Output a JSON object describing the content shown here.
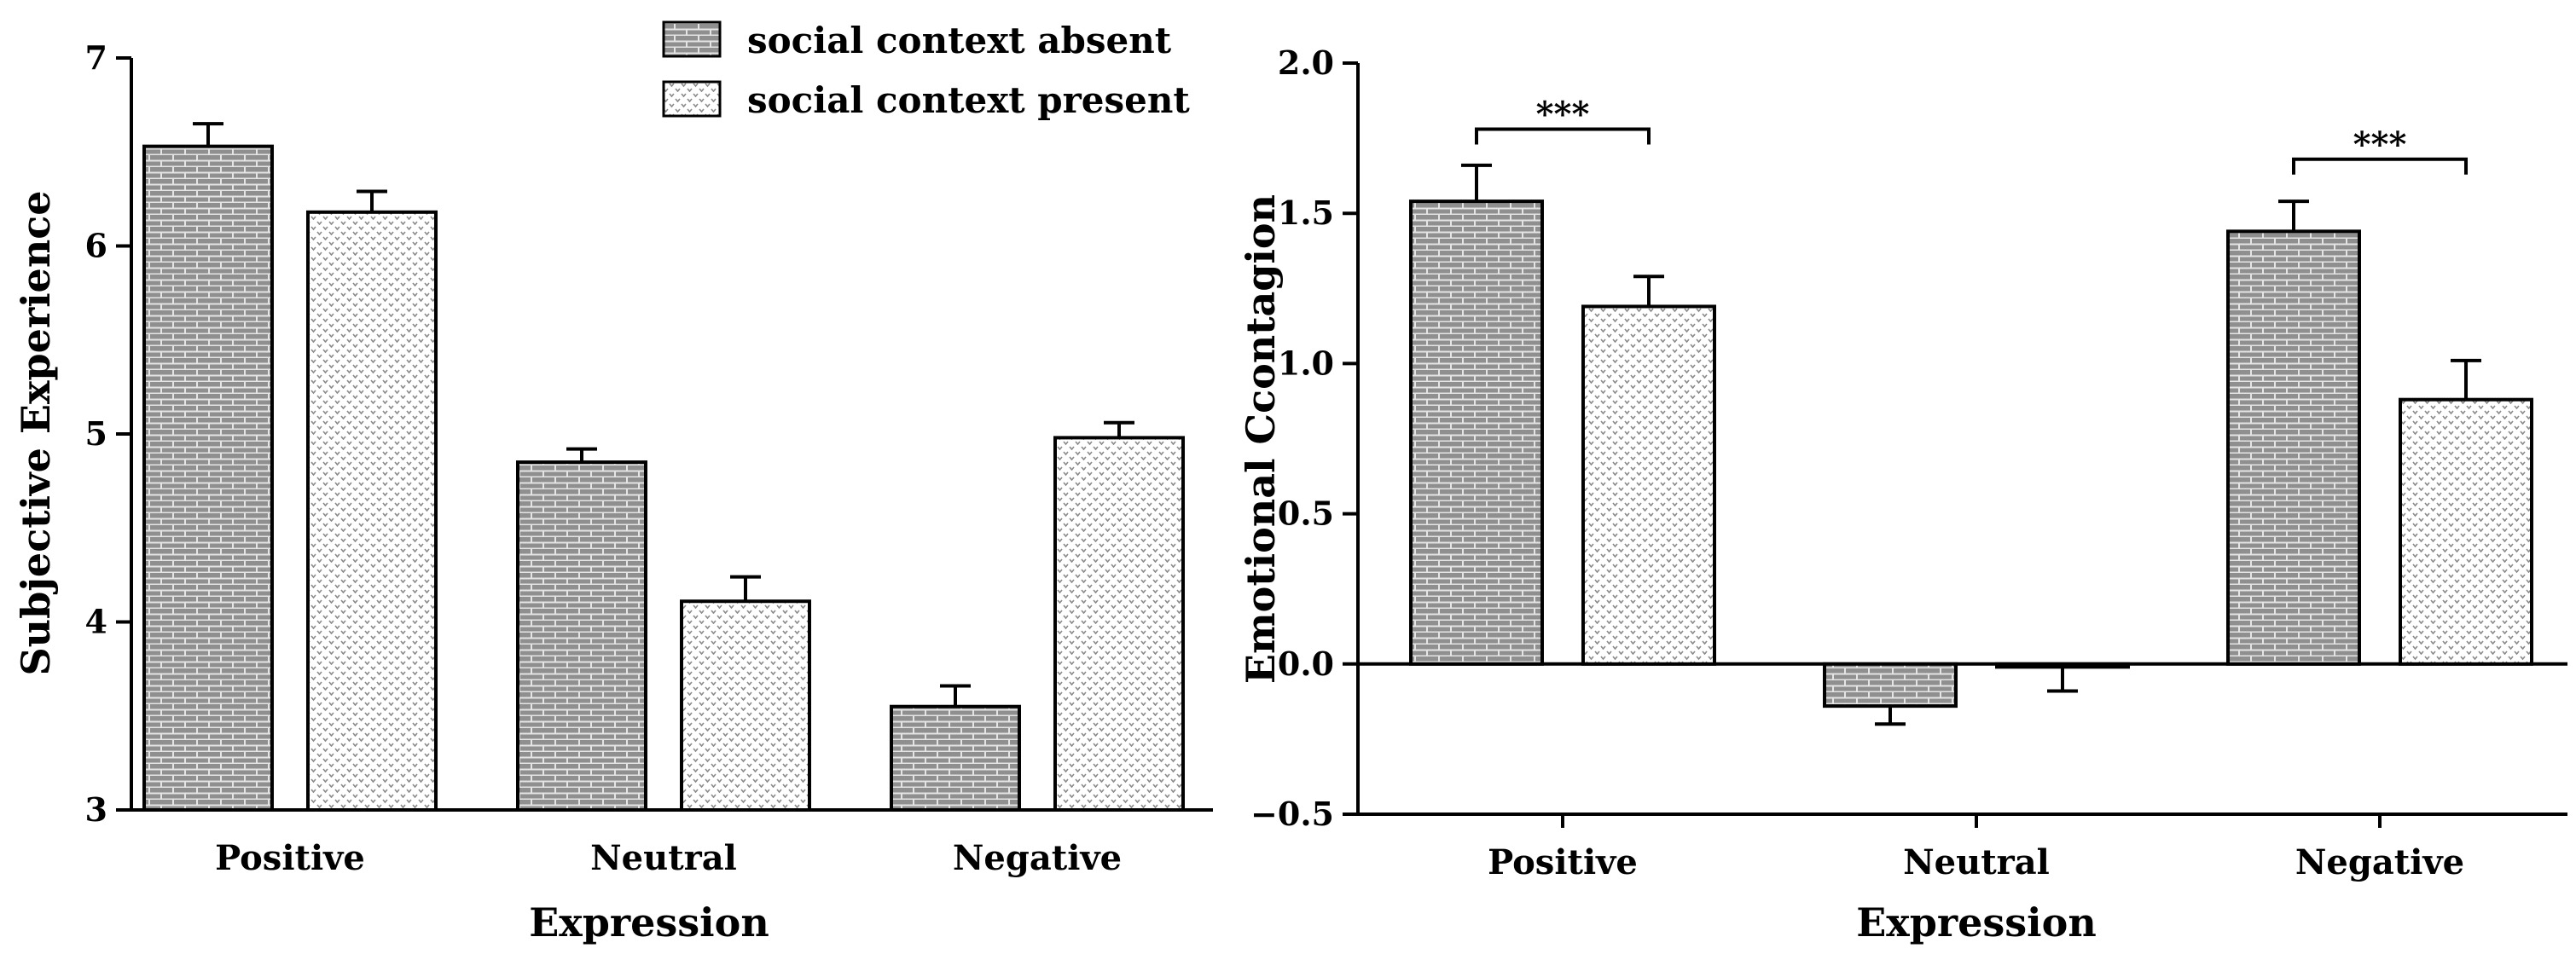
{
  "chart_data": [
    {
      "type": "bar",
      "title": "",
      "xlabel": "Expression",
      "ylabel": "Subjective Experience",
      "ylim": [
        3,
        7
      ],
      "yticks": [
        "3",
        "4",
        "5",
        "6",
        "7"
      ],
      "categories": [
        "Positive",
        "Neutral",
        "Negative"
      ],
      "series": [
        {
          "name": "social context absent",
          "values": [
            6.53,
            4.85,
            3.55
          ],
          "errors": [
            0.12,
            0.07,
            0.11
          ]
        },
        {
          "name": "social context present",
          "values": [
            6.18,
            4.11,
            4.98
          ],
          "errors": [
            0.11,
            0.13,
            0.08
          ]
        }
      ],
      "legend": [
        "social context absent",
        "social context present"
      ],
      "legend_position": "top-right"
    },
    {
      "type": "bar",
      "title": "",
      "xlabel": "Expression",
      "ylabel": "Emotional Ccontagion",
      "ylim": [
        -0.5,
        2.0
      ],
      "yticks": [
        "−0.5",
        "0.0",
        "0.5",
        "1.0",
        "1.5",
        "2.0"
      ],
      "categories": [
        "Positive",
        "Neutral",
        "Negative"
      ],
      "series": [
        {
          "name": "social context absent",
          "values": [
            1.54,
            -0.14,
            1.44
          ],
          "errors": [
            0.12,
            0.06,
            0.1
          ]
        },
        {
          "name": "social context present",
          "values": [
            1.19,
            -0.01,
            0.88
          ],
          "errors": [
            0.1,
            0.08,
            0.13
          ]
        }
      ],
      "annotations": [
        {
          "category": "Positive",
          "label": "***",
          "level": 1.78
        },
        {
          "category": "Negative",
          "label": "***",
          "level": 1.68
        }
      ]
    }
  ],
  "colors": {
    "absent_fill": "#8f8f8f",
    "absent_mortar": "#e4e4e4",
    "present_fill": "#ffffff",
    "present_mark": "#8a8a8a",
    "stroke": "#000000"
  }
}
